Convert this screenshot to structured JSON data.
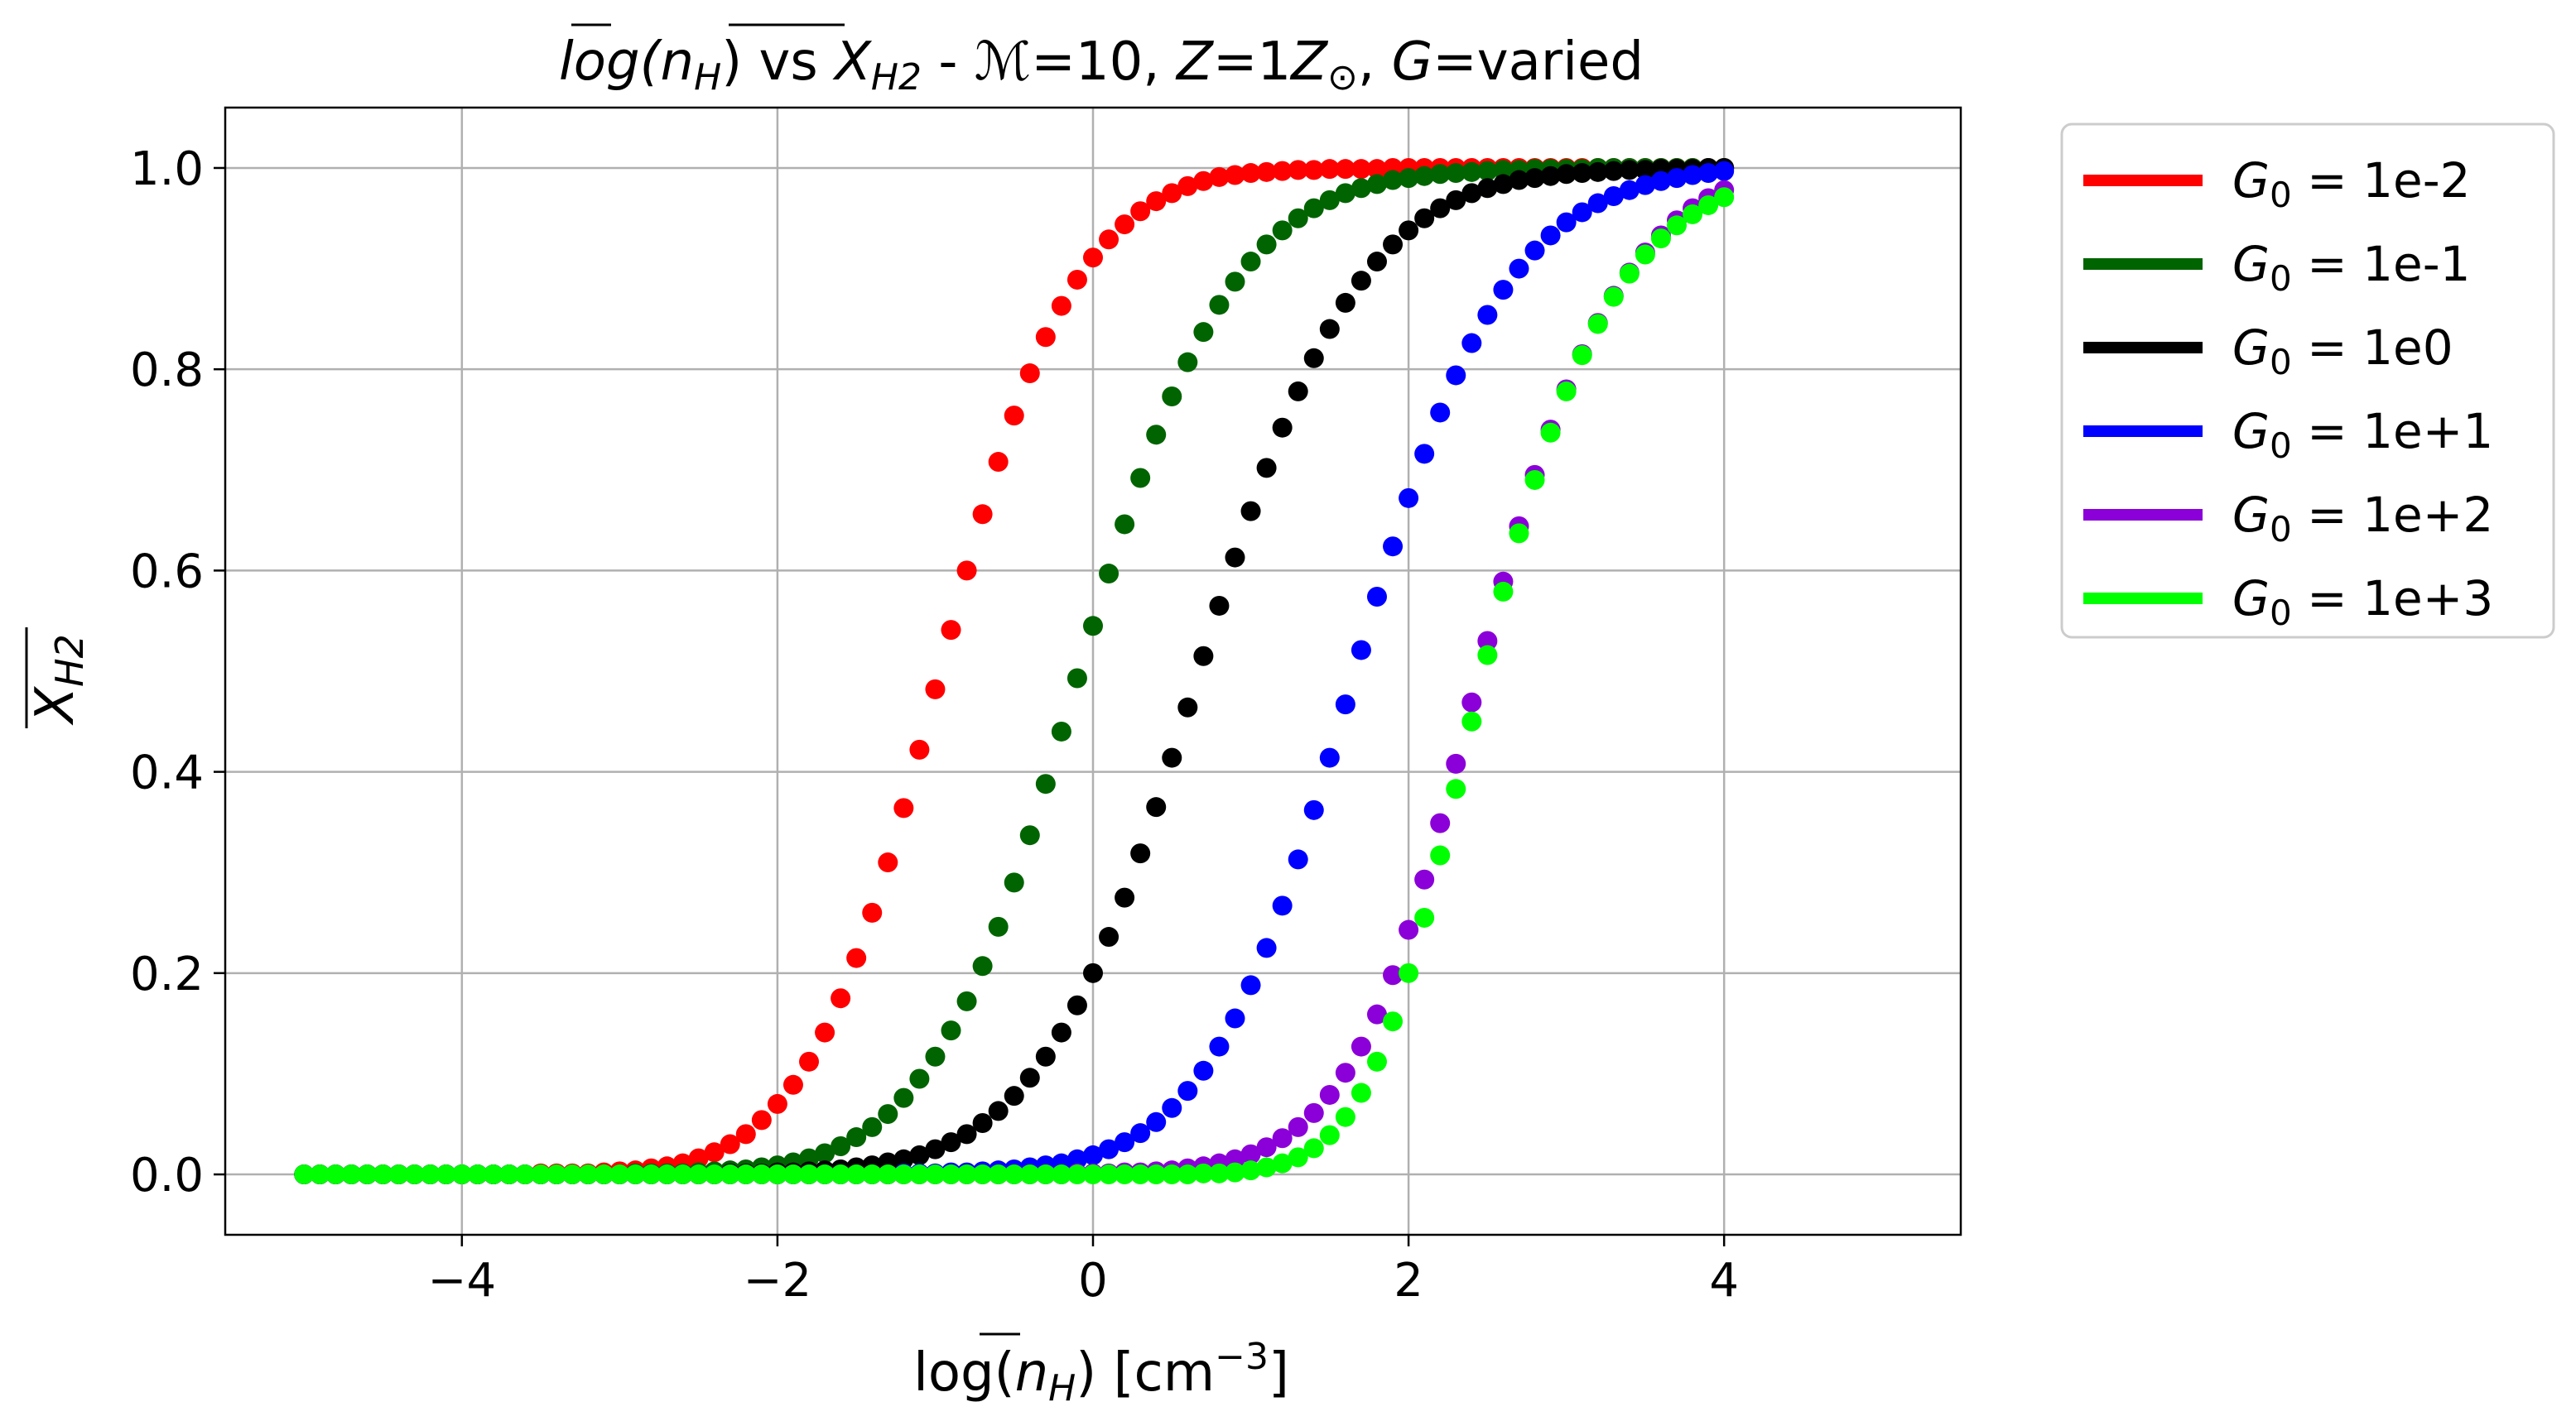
{
  "chart_data": {
    "type": "scatter",
    "title": {
      "pre": "log(",
      "n": "n",
      "n_sub": "H",
      "mid": ") vs ",
      "x": "X",
      "x_sub": "H2",
      "sep": " - ",
      "mach": "ℳ",
      "mach_val": "=10, ",
      "z": "Z",
      "z_val": "=1",
      "z_unit": "Z",
      "z_unit_sub": "⊙",
      "comma": ", ",
      "g": "G",
      "g_val": "=varied"
    },
    "xlabel": {
      "pre": "log(",
      "n": "n",
      "n_sub": "H",
      "post": ") [cm",
      "sup": "−3",
      "end": "]"
    },
    "ylabel": {
      "x": "X",
      "x_sub": "H2"
    },
    "xlim": [
      -5.5,
      5.5
    ],
    "ylim": [
      -0.06,
      1.06
    ],
    "xticks": [
      {
        "value": -4,
        "label": "−4"
      },
      {
        "value": -2,
        "label": "−2"
      },
      {
        "value": 0,
        "label": "0"
      },
      {
        "value": 2,
        "label": "2"
      },
      {
        "value": 4,
        "label": "4"
      }
    ],
    "yticks": [
      {
        "value": 0.0,
        "label": "0.0"
      },
      {
        "value": 0.2,
        "label": "0.2"
      },
      {
        "value": 0.4,
        "label": "0.4"
      },
      {
        "value": 0.6,
        "label": "0.6"
      },
      {
        "value": 0.8,
        "label": "0.8"
      },
      {
        "value": 1.0,
        "label": "1.0"
      }
    ],
    "grid": true,
    "legend_position": "outside-right-top",
    "x": [
      -5.0,
      -4.9,
      -4.8,
      -4.7,
      -4.6,
      -4.5,
      -4.4,
      -4.3,
      -4.2,
      -4.1,
      -4.0,
      -3.9,
      -3.8,
      -3.7,
      -3.6,
      -3.5,
      -3.4,
      -3.3,
      -3.2,
      -3.1,
      -3.0,
      -2.9,
      -2.8,
      -2.7,
      -2.6,
      -2.5,
      -2.4,
      -2.3,
      -2.2,
      -2.1,
      -2.0,
      -1.9,
      -1.8,
      -1.7,
      -1.6,
      -1.5,
      -1.4,
      -1.3,
      -1.2,
      -1.1,
      -1.0,
      -0.9,
      -0.8,
      -0.7,
      -0.6,
      -0.5,
      -0.4,
      -0.3,
      -0.2,
      -0.1,
      0.0,
      0.1,
      0.2,
      0.3,
      0.4,
      0.5,
      0.6,
      0.7,
      0.8,
      0.9,
      1.0,
      1.1,
      1.2,
      1.3,
      1.4,
      1.5,
      1.6,
      1.7,
      1.8,
      1.9,
      2.0,
      2.1,
      2.2,
      2.3,
      2.4,
      2.5,
      2.6,
      2.7,
      2.8,
      2.9,
      3.0,
      3.1,
      3.2,
      3.3,
      3.4,
      3.5,
      3.6,
      3.7,
      3.8,
      3.9,
      4.0
    ],
    "series": [
      {
        "name": "G<sub>0</sub> = 1e-2",
        "legend_sym": "G",
        "legend_sub": "0",
        "legend_val": " = 1e-2",
        "color": "#ff0000",
        "y": [
          0.0,
          0.0,
          0.0,
          0.0,
          0.0,
          0.0,
          0.0,
          0.0,
          0.0,
          0.0,
          0.0,
          0.0,
          0.0,
          0.0,
          0.0,
          0.001,
          0.001,
          0.001,
          0.001,
          0.002,
          0.003,
          0.004,
          0.006,
          0.008,
          0.011,
          0.016,
          0.022,
          0.03,
          0.04,
          0.054,
          0.07,
          0.089,
          0.112,
          0.141,
          0.175,
          0.215,
          0.26,
          0.31,
          0.364,
          0.422,
          0.482,
          0.541,
          0.6,
          0.656,
          0.708,
          0.754,
          0.796,
          0.832,
          0.863,
          0.889,
          0.911,
          0.929,
          0.944,
          0.957,
          0.967,
          0.975,
          0.982,
          0.987,
          0.991,
          0.993,
          0.995,
          0.996,
          0.997,
          0.998,
          0.998,
          0.999,
          0.999,
          0.999,
          0.999,
          1.0,
          1.0,
          1.0,
          1.0,
          1.0,
          1.0,
          1.0,
          1.0,
          1.0,
          1.0,
          1.0,
          1.0,
          1.0,
          1.0,
          1.0,
          1.0,
          1.0,
          1.0,
          1.0,
          1.0,
          1.0,
          1.0
        ]
      },
      {
        "name": "G<sub>0</sub> = 1e-1",
        "legend_sym": "G",
        "legend_sub": "0",
        "legend_val": " = 1e-1",
        "color": "#006400",
        "y": [
          0.0,
          0.0,
          0.0,
          0.0,
          0.0,
          0.0,
          0.0,
          0.0,
          0.0,
          0.0,
          0.0,
          0.0,
          0.0,
          0.0,
          0.0,
          0.0,
          0.0,
          0.0,
          0.0,
          0.0,
          0.0,
          0.001,
          0.001,
          0.001,
          0.001,
          0.002,
          0.003,
          0.004,
          0.005,
          0.007,
          0.009,
          0.012,
          0.016,
          0.021,
          0.028,
          0.037,
          0.047,
          0.06,
          0.076,
          0.095,
          0.117,
          0.143,
          0.172,
          0.207,
          0.246,
          0.29,
          0.337,
          0.388,
          0.44,
          0.493,
          0.545,
          0.597,
          0.646,
          0.692,
          0.735,
          0.773,
          0.807,
          0.837,
          0.864,
          0.887,
          0.907,
          0.924,
          0.938,
          0.95,
          0.96,
          0.968,
          0.975,
          0.98,
          0.984,
          0.988,
          0.99,
          0.992,
          0.994,
          0.995,
          0.996,
          0.997,
          0.998,
          0.998,
          0.999,
          0.999,
          0.999,
          0.999,
          1.0,
          1.0,
          1.0,
          1.0,
          1.0,
          1.0,
          1.0,
          1.0,
          1.0
        ]
      },
      {
        "name": "G<sub>0</sub> = 1e0",
        "legend_sym": "G",
        "legend_sub": "0",
        "legend_val": " = 1e0",
        "color": "#000000",
        "y": [
          0.0,
          0.0,
          0.0,
          0.0,
          0.0,
          0.0,
          0.0,
          0.0,
          0.0,
          0.0,
          0.0,
          0.0,
          0.0,
          0.0,
          0.0,
          0.0,
          0.0,
          0.0,
          0.0,
          0.0,
          0.0,
          0.0,
          0.0,
          0.0,
          0.0,
          0.0,
          0.0,
          0.001,
          0.001,
          0.001,
          0.002,
          0.002,
          0.003,
          0.004,
          0.005,
          0.007,
          0.009,
          0.012,
          0.015,
          0.019,
          0.025,
          0.032,
          0.04,
          0.051,
          0.063,
          0.078,
          0.096,
          0.117,
          0.141,
          0.168,
          0.2,
          0.236,
          0.275,
          0.319,
          0.365,
          0.414,
          0.464,
          0.515,
          0.565,
          0.613,
          0.659,
          0.702,
          0.742,
          0.778,
          0.811,
          0.84,
          0.866,
          0.888,
          0.907,
          0.924,
          0.938,
          0.95,
          0.96,
          0.968,
          0.975,
          0.98,
          0.984,
          0.988,
          0.99,
          0.992,
          0.994,
          0.995,
          0.996,
          0.997,
          0.998,
          0.998,
          0.999,
          0.999,
          0.999,
          1.0,
          1.0
        ]
      },
      {
        "name": "G<sub>0</sub> = 1e+1",
        "legend_sym": "G",
        "legend_sub": "0",
        "legend_val": " = 1e+1",
        "color": "#0000ff",
        "y": [
          0.0,
          0.0,
          0.0,
          0.0,
          0.0,
          0.0,
          0.0,
          0.0,
          0.0,
          0.0,
          0.0,
          0.0,
          0.0,
          0.0,
          0.0,
          0.0,
          0.0,
          0.0,
          0.0,
          0.0,
          0.0,
          0.0,
          0.0,
          0.0,
          0.0,
          0.0,
          0.0,
          0.0,
          0.0,
          0.0,
          0.0,
          0.0,
          0.0,
          0.0,
          0.0,
          0.0,
          0.0,
          0.0,
          0.001,
          0.001,
          0.001,
          0.002,
          0.002,
          0.003,
          0.004,
          0.005,
          0.007,
          0.009,
          0.011,
          0.015,
          0.019,
          0.025,
          0.032,
          0.041,
          0.052,
          0.066,
          0.083,
          0.103,
          0.127,
          0.155,
          0.188,
          0.225,
          0.267,
          0.313,
          0.362,
          0.414,
          0.467,
          0.521,
          0.574,
          0.624,
          0.672,
          0.716,
          0.757,
          0.794,
          0.826,
          0.854,
          0.879,
          0.9,
          0.918,
          0.933,
          0.946,
          0.956,
          0.965,
          0.972,
          0.978,
          0.983,
          0.987,
          0.99,
          0.993,
          0.995,
          0.997
        ]
      },
      {
        "name": "G<sub>0</sub> = 1e+2",
        "legend_sym": "G",
        "legend_sub": "0",
        "legend_val": " = 1e+2",
        "color": "#8b00d8",
        "y": [
          0.0,
          0.0,
          0.0,
          0.0,
          0.0,
          0.0,
          0.0,
          0.0,
          0.0,
          0.0,
          0.0,
          0.0,
          0.0,
          0.0,
          0.0,
          0.0,
          0.0,
          0.0,
          0.0,
          0.0,
          0.0,
          0.0,
          0.0,
          0.0,
          0.0,
          0.0,
          0.0,
          0.0,
          0.0,
          0.0,
          0.0,
          0.0,
          0.0,
          0.0,
          0.0,
          0.0,
          0.0,
          0.0,
          0.0,
          0.0,
          0.0,
          0.0,
          0.0,
          0.0,
          0.0,
          0.0,
          0.0,
          0.0,
          0.0,
          0.001,
          0.001,
          0.001,
          0.002,
          0.002,
          0.003,
          0.004,
          0.006,
          0.008,
          0.011,
          0.015,
          0.02,
          0.027,
          0.036,
          0.047,
          0.061,
          0.079,
          0.101,
          0.127,
          0.159,
          0.198,
          0.243,
          0.293,
          0.349,
          0.408,
          0.469,
          0.53,
          0.589,
          0.644,
          0.695,
          0.74,
          0.78,
          0.815,
          0.846,
          0.873,
          0.896,
          0.916,
          0.933,
          0.948,
          0.96,
          0.97,
          0.978
        ]
      },
      {
        "name": "G<sub>0</sub> = 1e+3",
        "legend_sym": "G",
        "legend_sub": "0",
        "legend_val": " = 1e+3",
        "color": "#00ff00",
        "y": [
          0.0,
          0.0,
          0.0,
          0.0,
          0.0,
          0.0,
          0.0,
          0.0,
          0.0,
          0.0,
          0.0,
          0.0,
          0.0,
          0.0,
          0.0,
          0.0,
          0.0,
          0.0,
          0.0,
          0.0,
          0.0,
          0.0,
          0.0,
          0.0,
          0.0,
          0.0,
          0.0,
          0.0,
          0.0,
          0.0,
          0.0,
          0.0,
          0.0,
          0.0,
          0.0,
          0.0,
          0.0,
          0.0,
          0.0,
          0.0,
          0.0,
          0.0,
          0.0,
          0.0,
          0.0,
          0.0,
          0.0,
          0.0,
          0.0,
          0.0,
          0.0,
          0.0,
          0.0,
          0.0,
          0.0,
          0.0,
          0.0,
          0.001,
          0.001,
          0.002,
          0.004,
          0.007,
          0.011,
          0.017,
          0.026,
          0.039,
          0.057,
          0.081,
          0.112,
          0.152,
          0.2,
          0.255,
          0.317,
          0.383,
          0.45,
          0.516,
          0.579,
          0.637,
          0.69,
          0.737,
          0.778,
          0.814,
          0.845,
          0.872,
          0.895,
          0.914,
          0.93,
          0.943,
          0.954,
          0.963,
          0.971
        ]
      }
    ]
  }
}
